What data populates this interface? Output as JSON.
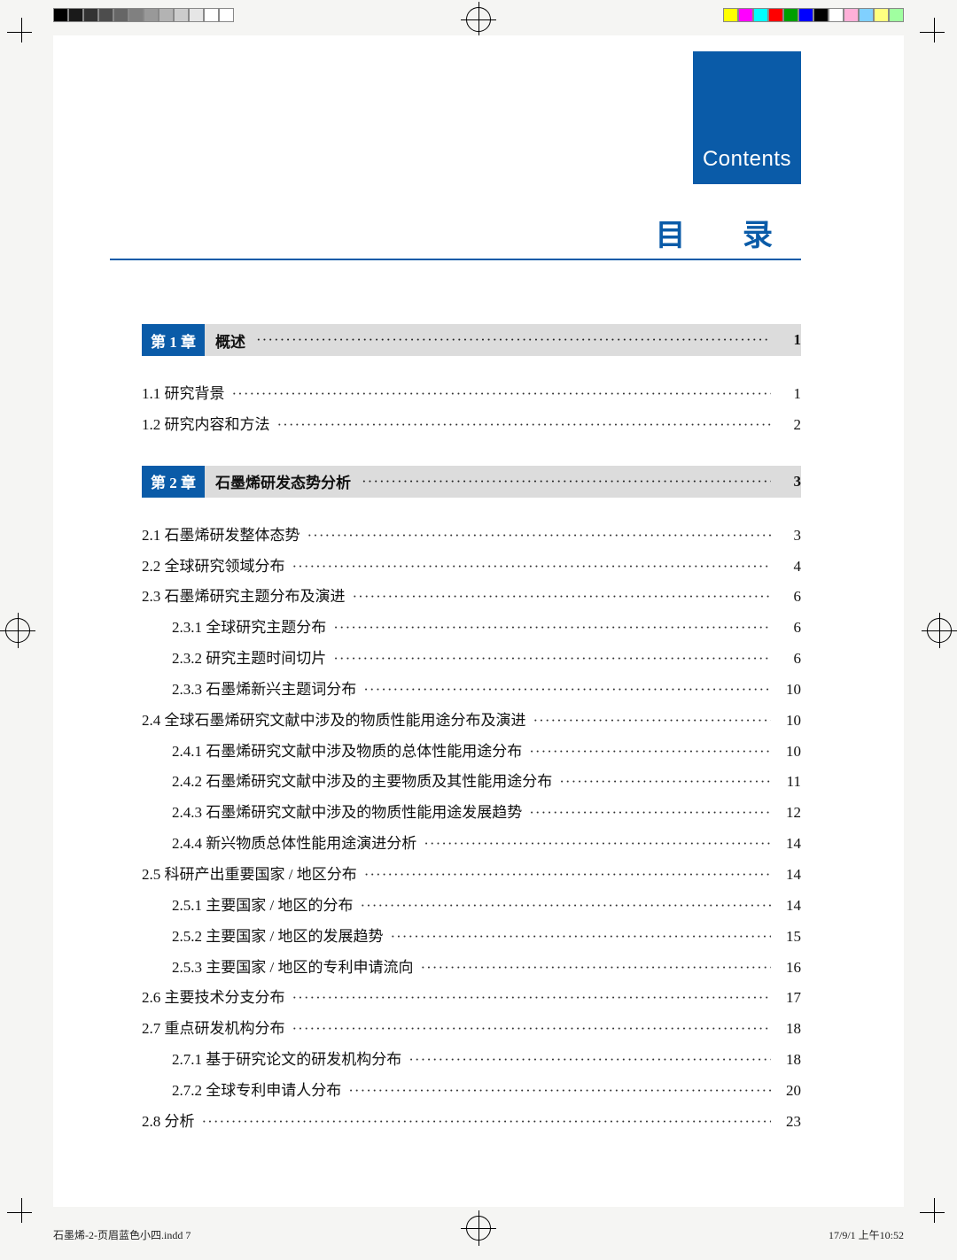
{
  "registration": {
    "left_gray_steps": [
      "#000000",
      "#1a1a1a",
      "#333333",
      "#4d4d4d",
      "#666666",
      "#808080",
      "#999999",
      "#b3b3b3",
      "#cccccc",
      "#e6e6e6",
      "#ffffff",
      "#ffffff"
    ],
    "right_colors": [
      "#ffff00",
      "#ff00ff",
      "#00ffff",
      "#ff0000",
      "#00a000",
      "#0000ff",
      "#000000",
      "#ffffff",
      "#ffb0d8",
      "#80d0ff",
      "#ffff80",
      "#a0ffa0"
    ]
  },
  "header": {
    "box_label": "Contents",
    "box_color": "#0a5ba8",
    "title": "目 录",
    "title_color": "#0a5ba8",
    "rule_color": "#0a5ba8"
  },
  "chapters": [
    {
      "badge": "第 1 章",
      "title": "概述",
      "page": "1",
      "entries": [
        {
          "level": 1,
          "label": "1.1 研究背景",
          "page": "1"
        },
        {
          "level": 1,
          "label": "1.2 研究内容和方法",
          "page": "2"
        }
      ]
    },
    {
      "badge": "第 2 章",
      "title": "石墨烯研发态势分析",
      "page": "3",
      "entries": [
        {
          "level": 1,
          "label": "2.1 石墨烯研发整体态势",
          "page": "3"
        },
        {
          "level": 1,
          "label": "2.2 全球研究领域分布",
          "page": "4"
        },
        {
          "level": 1,
          "label": "2.3 石墨烯研究主题分布及演进",
          "page": "6"
        },
        {
          "level": 2,
          "label": "2.3.1 全球研究主题分布",
          "page": "6"
        },
        {
          "level": 2,
          "label": "2.3.2 研究主题时间切片",
          "page": "6"
        },
        {
          "level": 2,
          "label": "2.3.3 石墨烯新兴主题词分布",
          "page": "10"
        },
        {
          "level": 1,
          "label": "2.4 全球石墨烯研究文献中涉及的物质性能用途分布及演进",
          "page": "10"
        },
        {
          "level": 2,
          "label": "2.4.1 石墨烯研究文献中涉及物质的总体性能用途分布",
          "page": "10"
        },
        {
          "level": 2,
          "label": "2.4.2 石墨烯研究文献中涉及的主要物质及其性能用途分布",
          "page": "11"
        },
        {
          "level": 2,
          "label": "2.4.3 石墨烯研究文献中涉及的物质性能用途发展趋势",
          "page": "12"
        },
        {
          "level": 2,
          "label": "2.4.4 新兴物质总体性能用途演进分析",
          "page": "14"
        },
        {
          "level": 1,
          "label": "2.5 科研产出重要国家 / 地区分布",
          "page": "14"
        },
        {
          "level": 2,
          "label": "2.5.1 主要国家 / 地区的分布",
          "page": "14"
        },
        {
          "level": 2,
          "label": "2.5.2 主要国家 / 地区的发展趋势",
          "page": "15"
        },
        {
          "level": 2,
          "label": "2.5.3 主要国家 / 地区的专利申请流向",
          "page": "16"
        },
        {
          "level": 1,
          "label": "2.6 主要技术分支分布",
          "page": "17"
        },
        {
          "level": 1,
          "label": "2.7 重点研发机构分布",
          "page": "18"
        },
        {
          "level": 2,
          "label": "2.7.1 基于研究论文的研发机构分布",
          "page": "18"
        },
        {
          "level": 2,
          "label": "2.7.2 全球专利申请人分布",
          "page": "20"
        },
        {
          "level": 1,
          "label": "2.8 分析",
          "page": "23"
        }
      ]
    }
  ],
  "footer": {
    "left": "石墨烯-2-页眉蓝色小四.indd  7",
    "right": "17/9/1  上午10:52"
  },
  "styling": {
    "page_bg": "#ffffff",
    "body_bg": "#f5f5f3",
    "chapter_row_bg": "#dcdcdc",
    "badge_bg": "#0a5ba8",
    "text_color": "#111111",
    "font_size_body": 17,
    "font_size_title": 34,
    "line_height": 2.05
  }
}
